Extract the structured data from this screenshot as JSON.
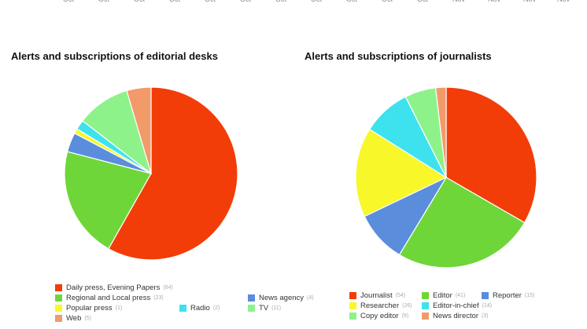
{
  "axis_ticks": [
    "Oct",
    "Oct",
    "Oct",
    "Oct",
    "Oct",
    "Oct",
    "Oct",
    "Oct",
    "Oct",
    "Oct",
    "Oct",
    "Nov",
    "Nov",
    "Nov",
    "Nov"
  ],
  "chart_data": [
    {
      "type": "pie",
      "title": "Alerts and subscriptions of editorial desks",
      "legend_position": "bottom",
      "slices": [
        {
          "label": "Daily press, Evening Papers",
          "value": 64,
          "color": "#f23d08"
        },
        {
          "label": "Regional and Local press",
          "value": 23,
          "color": "#6fd63a"
        },
        {
          "label": "News agency",
          "value": 4,
          "color": "#5a8ddc"
        },
        {
          "label": "Popular press",
          "value": 1,
          "color": "#f7f72a"
        },
        {
          "label": "Radio",
          "value": 2,
          "color": "#3ee2ef"
        },
        {
          "label": "TV",
          "value": 11,
          "color": "#8ef28a"
        },
        {
          "label": "Web",
          "value": 5,
          "color": "#f29a6a"
        }
      ]
    },
    {
      "type": "pie",
      "title": "Alerts and subscriptions of journalists",
      "legend_position": "bottom",
      "slices": [
        {
          "label": "Journalist",
          "value": 54,
          "color": "#f23d08"
        },
        {
          "label": "Editor",
          "value": 41,
          "color": "#6fd63a"
        },
        {
          "label": "Reporter",
          "value": 15,
          "color": "#5a8ddc"
        },
        {
          "label": "Researcher",
          "value": 26,
          "color": "#f7f72a"
        },
        {
          "label": "Editor-in-chief",
          "value": 14,
          "color": "#3ee2ef"
        },
        {
          "label": "Copy editor",
          "value": 9,
          "color": "#8ef28a"
        },
        {
          "label": "News director",
          "value": 3,
          "color": "#f29a6a"
        }
      ]
    }
  ]
}
